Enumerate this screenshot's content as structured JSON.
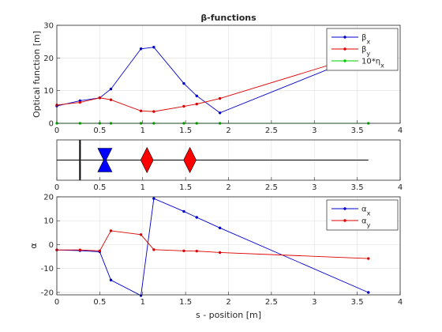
{
  "chart_data": [
    {
      "type": "line",
      "title": "β-functions",
      "xlabel": "",
      "ylabel": "Optical function [m]",
      "xlim": [
        0,
        4
      ],
      "ylim": [
        0,
        30
      ],
      "xticks": [
        0,
        0.5,
        1,
        1.5,
        2,
        2.5,
        3,
        3.5,
        4
      ],
      "yticks": [
        0,
        10,
        20,
        30
      ],
      "legend_position": "top-right",
      "series": [
        {
          "name": "βx",
          "color": "#0000cc",
          "x": [
            0,
            0.27,
            0.5,
            0.63,
            0.98,
            1.13,
            1.48,
            1.63,
            1.9,
            3.63
          ],
          "y": [
            5.3,
            6.9,
            7.8,
            10.5,
            22.8,
            23.3,
            12.2,
            8.4,
            3.2,
            21.5
          ]
        },
        {
          "name": "βy",
          "color": "#dd0000",
          "x": [
            0,
            0.27,
            0.5,
            0.63,
            0.98,
            1.13,
            1.48,
            1.63,
            1.9,
            3.63
          ],
          "y": [
            5.6,
            6.4,
            7.8,
            7.2,
            3.8,
            3.6,
            5.2,
            5.9,
            7.6,
            21.5
          ]
        },
        {
          "name": "10*ηx",
          "color": "#00cc00",
          "x": [
            0,
            0.27,
            0.5,
            0.63,
            0.98,
            1.13,
            1.48,
            1.63,
            1.9,
            3.63
          ],
          "y": [
            0,
            0,
            0,
            0,
            0,
            0,
            0,
            0,
            0,
            0
          ]
        }
      ]
    },
    {
      "type": "lattice",
      "xlim": [
        0,
        4
      ],
      "xticks": [
        0,
        0.5,
        1,
        1.5,
        2,
        2.5,
        3,
        3.5,
        4
      ],
      "beamline_end": 3.63,
      "elements": [
        {
          "kind": "marker",
          "s": 0.27,
          "color": "#000000"
        },
        {
          "kind": "defocusing-quadrupole",
          "s": 0.56,
          "color": "#0000ff"
        },
        {
          "kind": "focusing-quadrupole",
          "s": 1.05,
          "color": "#ff0000"
        },
        {
          "kind": "focusing-quadrupole",
          "s": 1.55,
          "color": "#ff0000"
        }
      ]
    },
    {
      "type": "line",
      "xlabel": "s - position [m]",
      "ylabel": "α",
      "xlim": [
        0,
        4
      ],
      "ylim": [
        -21,
        20
      ],
      "xticks": [
        0,
        0.5,
        1,
        1.5,
        2,
        2.5,
        3,
        3.5,
        4
      ],
      "yticks": [
        -20,
        -10,
        0,
        10,
        20
      ],
      "legend_position": "top-right",
      "series": [
        {
          "name": "αx",
          "color": "#0000cc",
          "x": [
            0,
            0.27,
            0.5,
            0.63,
            0.98,
            1.13,
            1.48,
            1.63,
            1.9,
            3.63
          ],
          "y": [
            -2.2,
            -2.5,
            -3.0,
            -14.8,
            -21.3,
            19.3,
            13.9,
            11.4,
            7.0,
            -20.0
          ]
        },
        {
          "name": "αy",
          "color": "#dd0000",
          "x": [
            0,
            0.27,
            0.5,
            0.63,
            0.98,
            1.13,
            1.48,
            1.63,
            1.9,
            3.63
          ],
          "y": [
            -2.2,
            -2.2,
            -2.6,
            5.8,
            4.2,
            -2.1,
            -2.6,
            -2.7,
            -3.3,
            -5.8
          ]
        }
      ]
    }
  ]
}
